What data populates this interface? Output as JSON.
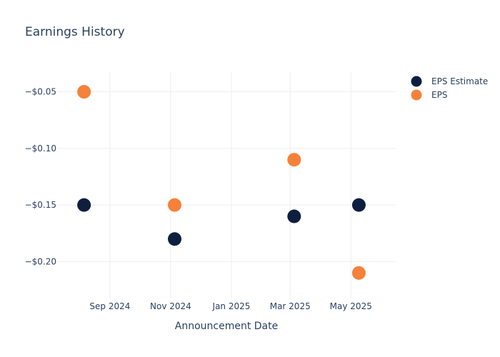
{
  "chart_data": {
    "type": "scatter",
    "title": "Earnings History",
    "xlabel": "Announcement Date",
    "ylabel": "",
    "x_ticks": [
      "Sep 2024",
      "Nov 2024",
      "Jan 2025",
      "Mar 2025",
      "May 2025"
    ],
    "y_ticks": [
      "−$0.05",
      "−$0.10",
      "−$0.15",
      "−$0.20"
    ],
    "x_tick_dates": [
      "2024-09-01",
      "2024-11-01",
      "2025-01-01",
      "2025-03-01",
      "2025-05-01"
    ],
    "y_tick_values": [
      -0.05,
      -0.1,
      -0.15,
      -0.2
    ],
    "xlim": [
      "2024-07-10",
      "2025-06-15"
    ],
    "ylim": [
      -0.2325,
      -0.032
    ],
    "grid": true,
    "legend_position": "top-right",
    "series": [
      {
        "name": "EPS Estimate",
        "color": "#0d1f3f",
        "points": [
          {
            "x": "2024-08-06",
            "y": -0.15
          },
          {
            "x": "2024-11-05",
            "y": -0.18
          },
          {
            "x": "2025-03-05",
            "y": -0.16
          },
          {
            "x": "2025-05-09",
            "y": -0.15
          }
        ]
      },
      {
        "name": "EPS",
        "color": "#f5813a",
        "points": [
          {
            "x": "2024-08-06",
            "y": -0.05
          },
          {
            "x": "2024-11-05",
            "y": -0.15
          },
          {
            "x": "2025-03-05",
            "y": -0.11
          },
          {
            "x": "2025-05-09",
            "y": -0.21
          }
        ]
      }
    ]
  }
}
